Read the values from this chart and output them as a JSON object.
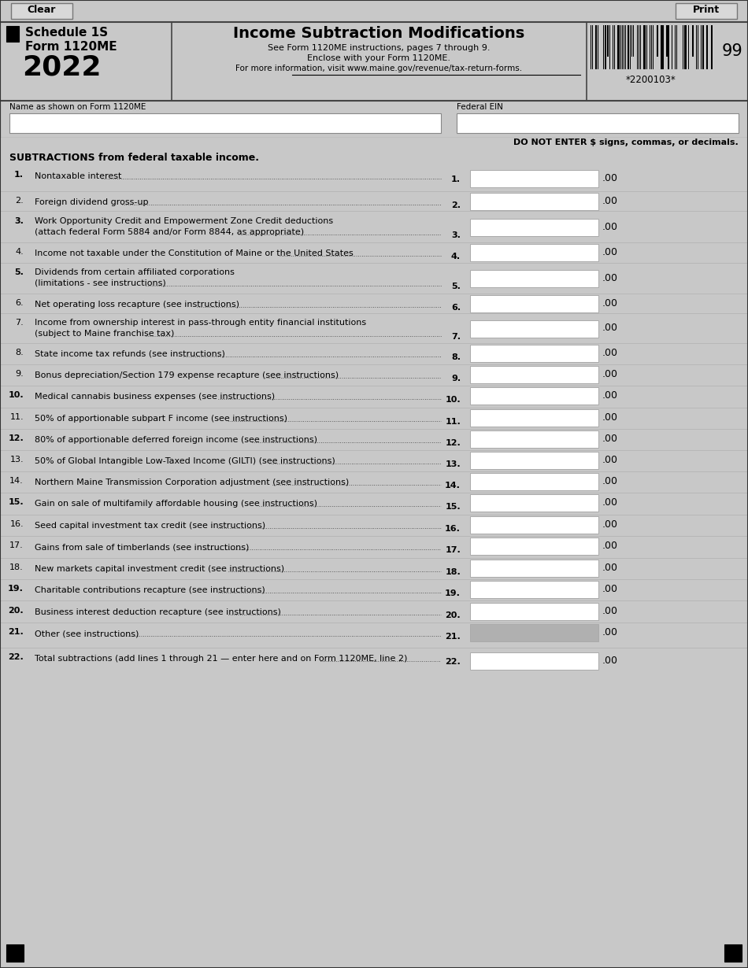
{
  "title": "Income Subtraction Modifications",
  "subtitle_line1": "See Form 1120ME instructions, pages 7 through 9.",
  "subtitle_line2": "Enclose with your Form 1120ME.",
  "subtitle_line3": "For more information, visit www.maine.gov/revenue/tax-return-forms.",
  "schedule": "Schedule 1S",
  "form": "Form 1120ME",
  "year": "2022",
  "barcode_text": "*2200103*",
  "page_number": "99",
  "clear_btn": "Clear",
  "print_btn": "Print",
  "name_label": "Name as shown on Form 1120ME",
  "ein_label": "Federal EIN",
  "do_not_enter": "DO NOT ENTER $ signs, commas, or decimals.",
  "subtractions_header": "SUBTRACTIONS from federal taxable income.",
  "bg_color": "#c8c8c8",
  "input_bg": "#ffffff",
  "shaded_input_bg": "#b0b0b0",
  "lines": [
    {
      "num": "1",
      "bold_num": true,
      "text": "Nontaxable interest",
      "text2": null,
      "line_num": "1."
    },
    {
      "num": "2",
      "bold_num": false,
      "text": "Foreign dividend gross-up",
      "text2": null,
      "line_num": "2."
    },
    {
      "num": "3",
      "bold_num": true,
      "text": "Work Opportunity Credit and Empowerment Zone Credit deductions",
      "text2": "(attach federal Form 5884 and/or Form 8844, as appropriate)",
      "line_num": "3."
    },
    {
      "num": "4",
      "bold_num": false,
      "text": "Income not taxable under the Constitution of Maine or the United States",
      "text2": null,
      "line_num": "4."
    },
    {
      "num": "5",
      "bold_num": true,
      "text": "Dividends from certain affiliated corporations",
      "text2": "(limitations - see instructions)",
      "line_num": "5."
    },
    {
      "num": "6",
      "bold_num": false,
      "text": "Net operating loss recapture (see instructions)",
      "text2": null,
      "line_num": "6."
    },
    {
      "num": "7",
      "bold_num": false,
      "text": "Income from ownership interest in pass-through entity financial institutions",
      "text2": "(subject to Maine franchise tax)",
      "line_num": "7."
    },
    {
      "num": "8",
      "bold_num": false,
      "text": "State income tax refunds (see instructions)",
      "text2": null,
      "line_num": "8."
    },
    {
      "num": "9",
      "bold_num": false,
      "text": "Bonus depreciation/Section 179 expense recapture (see instructions)",
      "text2": null,
      "line_num": "9."
    },
    {
      "num": "10",
      "bold_num": true,
      "text": "Medical cannabis business expenses (see instructions)",
      "text2": null,
      "line_num": "10."
    },
    {
      "num": "11",
      "bold_num": false,
      "text": "50% of apportionable subpart F income (see instructions)",
      "text2": null,
      "line_num": "11."
    },
    {
      "num": "12",
      "bold_num": true,
      "text": "80% of apportionable deferred foreign income (see instructions)",
      "text2": null,
      "line_num": "12."
    },
    {
      "num": "13",
      "bold_num": false,
      "text": "50% of Global Intangible Low-Taxed Income (GILTI) (see instructions)",
      "text2": null,
      "line_num": "13."
    },
    {
      "num": "14",
      "bold_num": false,
      "text": "Northern Maine Transmission Corporation adjustment (see instructions)",
      "text2": null,
      "line_num": "14."
    },
    {
      "num": "15",
      "bold_num": true,
      "text": "Gain on sale of multifamily affordable housing (see instructions)",
      "text2": null,
      "line_num": "15."
    },
    {
      "num": "16",
      "bold_num": false,
      "text": "Seed capital investment tax credit (see instructions)",
      "text2": null,
      "line_num": "16."
    },
    {
      "num": "17",
      "bold_num": false,
      "text": "Gains from sale of timberlands (see instructions)",
      "text2": null,
      "line_num": "17."
    },
    {
      "num": "18",
      "bold_num": false,
      "text": "New markets capital investment credit (see instructions)",
      "text2": null,
      "line_num": "18."
    },
    {
      "num": "19",
      "bold_num": true,
      "text": "Charitable contributions recapture (see instructions)",
      "text2": null,
      "line_num": "19."
    },
    {
      "num": "20",
      "bold_num": true,
      "text": "Business interest deduction recapture (see instructions)",
      "text2": null,
      "line_num": "20."
    },
    {
      "num": "21",
      "bold_num": true,
      "text": "Other (see instructions)",
      "text2": null,
      "line_num": "21.",
      "shaded": true
    },
    {
      "num": "22",
      "bold_num": true,
      "text": "Total subtractions (add lines 1 through 21 — enter here and on Form 1120ME, line 2)",
      "text2": null,
      "line_num": "22."
    }
  ]
}
